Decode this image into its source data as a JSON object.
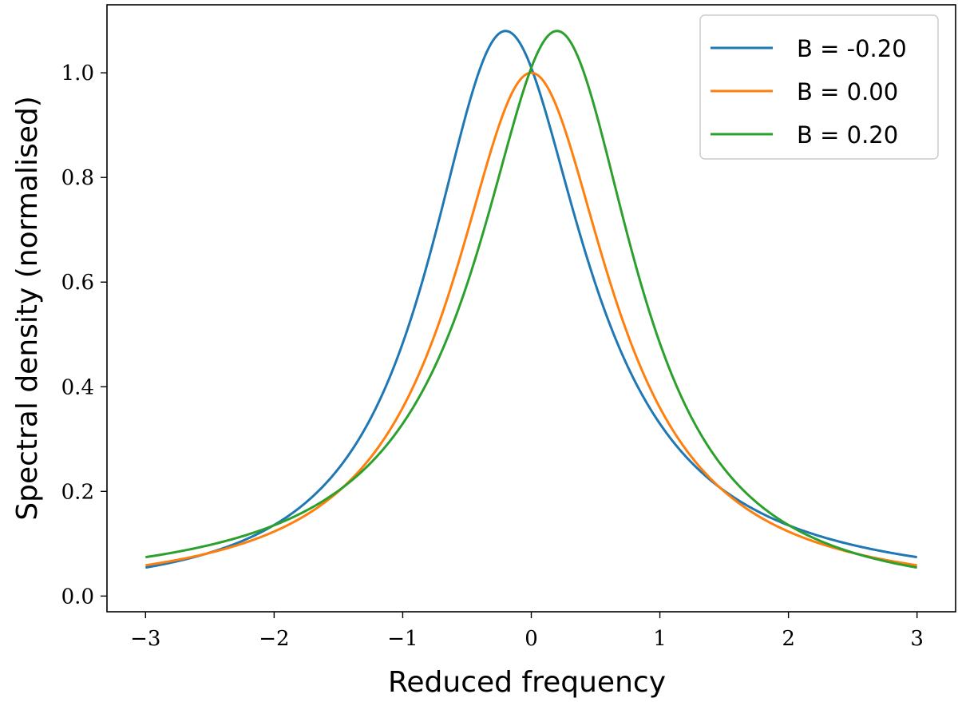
{
  "chart_data": {
    "type": "line",
    "title": "",
    "xlabel": "Reduced frequency",
    "ylabel": "Spectral density (normalised)",
    "xlim": [
      -3.3,
      3.3
    ],
    "ylim": [
      -0.03,
      1.13
    ],
    "xticks": [
      -3,
      -2,
      -1,
      0,
      1,
      2,
      3
    ],
    "xtick_labels": [
      "−3",
      "−2",
      "−1",
      "0",
      "1",
      "2",
      "3"
    ],
    "yticks": [
      0.0,
      0.2,
      0.4,
      0.6,
      0.8,
      1.0
    ],
    "ytick_labels": [
      "0.0",
      "0.2",
      "0.4",
      "0.6",
      "0.8",
      "1.0"
    ],
    "legend_position": "top-right",
    "x_range": [
      -3,
      3
    ],
    "series": [
      {
        "name": "B = -0.20",
        "B": -0.2,
        "color": "#1f77b4"
      },
      {
        "name": "B = 0.00",
        "B": 0.0,
        "color": "#ff7f0e"
      },
      {
        "name": "B = 0.20",
        "B": 0.2,
        "color": "#2ca02c"
      }
    ]
  }
}
